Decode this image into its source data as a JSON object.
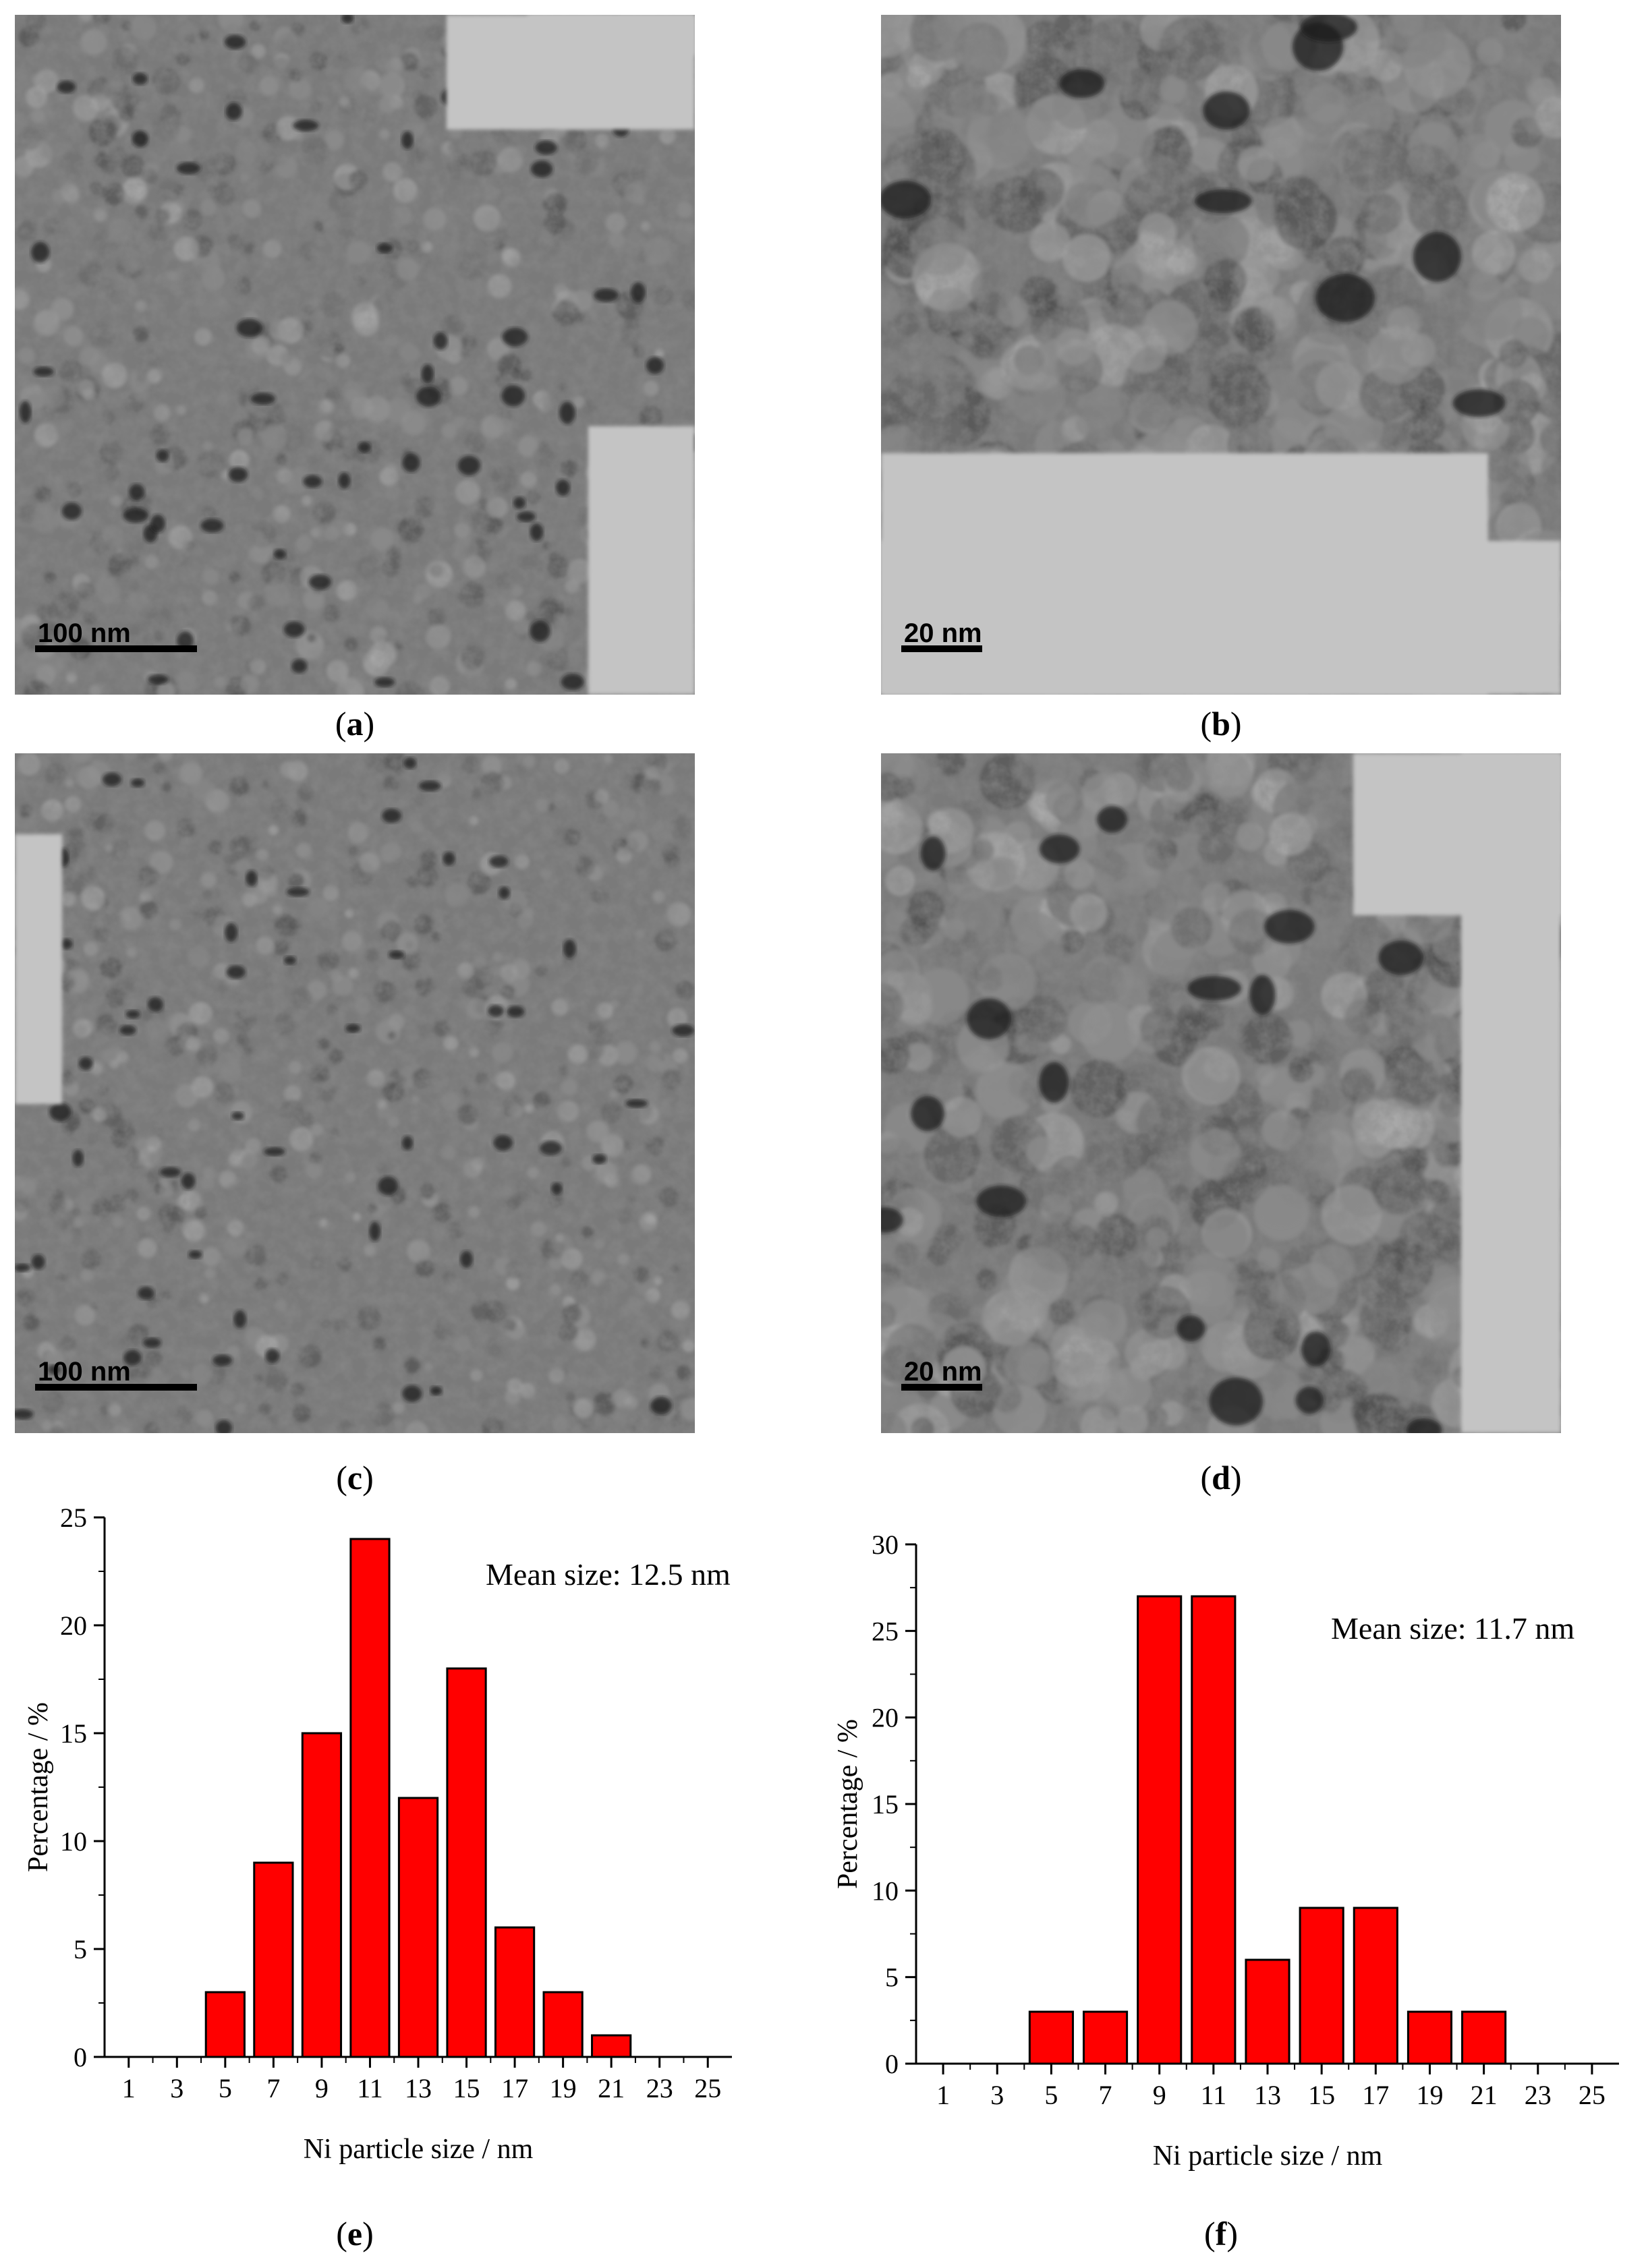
{
  "panels": {
    "a": {
      "caption_letter": "a",
      "scale_label": "100 nm"
    },
    "b": {
      "caption_letter": "b",
      "scale_label": "20 nm"
    },
    "c": {
      "caption_letter": "c",
      "scale_label": "100 nm"
    },
    "d": {
      "caption_letter": "d",
      "scale_label": "20 nm"
    },
    "e": {
      "caption_letter": "e"
    },
    "f": {
      "caption_letter": "f"
    }
  },
  "chart_data": [
    {
      "id": "e",
      "type": "bar",
      "categories": [
        1,
        3,
        5,
        7,
        9,
        11,
        13,
        15,
        17,
        19,
        21,
        23,
        25
      ],
      "values": [
        0,
        0,
        3,
        9,
        15,
        24,
        12,
        18,
        6,
        3,
        1,
        0,
        0
      ],
      "xlabel": "Ni particle size / nm",
      "ylabel": "Percentage / %",
      "ylim": [
        0,
        25
      ],
      "yticks": [
        0,
        5,
        10,
        15,
        20,
        25
      ],
      "xticks": [
        1,
        3,
        5,
        7,
        9,
        11,
        13,
        15,
        17,
        19,
        21,
        23,
        25
      ],
      "annotation": "Mean size: 12.5 nm",
      "bar_color": "#ff0000",
      "grid": false
    },
    {
      "id": "f",
      "type": "bar",
      "categories": [
        1,
        3,
        5,
        7,
        9,
        11,
        13,
        15,
        17,
        19,
        21,
        23,
        25
      ],
      "values": [
        0,
        0,
        3,
        3,
        27,
        27,
        6,
        9,
        9,
        3,
        3,
        0,
        0
      ],
      "xlabel": "Ni particle size / nm",
      "ylabel": "Percentage / %",
      "ylim": [
        0,
        30
      ],
      "yticks": [
        0,
        5,
        10,
        15,
        20,
        25,
        30
      ],
      "xticks": [
        1,
        3,
        5,
        7,
        9,
        11,
        13,
        15,
        17,
        19,
        21,
        23,
        25
      ],
      "annotation": "Mean size: 11.7 nm",
      "bar_color": "#ff0000",
      "grid": false
    }
  ]
}
